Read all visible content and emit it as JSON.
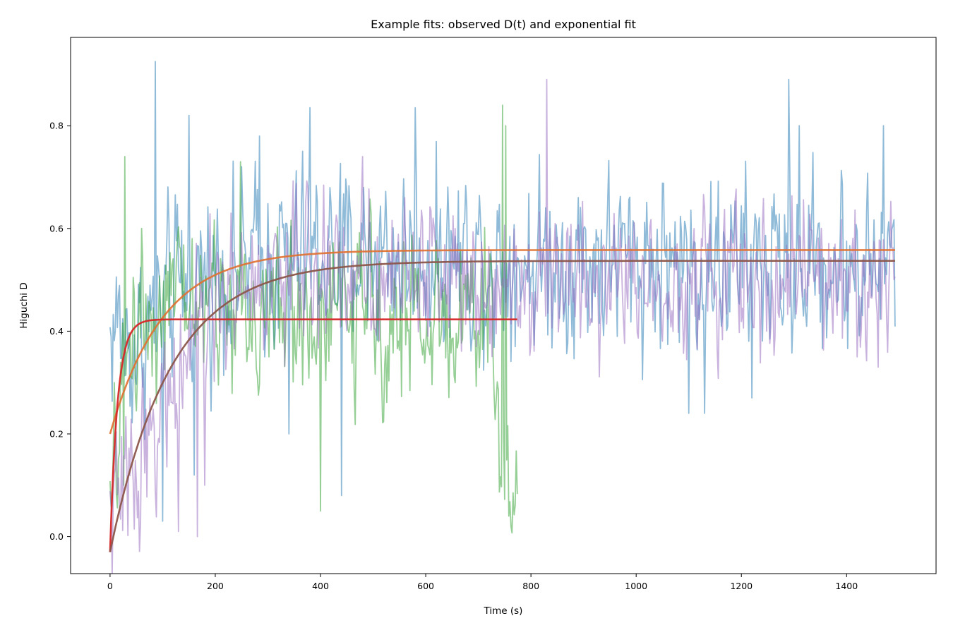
{
  "chart_data": {
    "type": "line",
    "title": "Example fits: observed D(t) and exponential fit",
    "xlabel": "Time (s)",
    "ylabel": "Higuchi D",
    "xlim": [
      -75,
      1570
    ],
    "ylim": [
      -0.072,
      0.972
    ],
    "xticks": [
      0,
      200,
      400,
      600,
      800,
      1000,
      1200,
      1400
    ],
    "yticks": [
      0.0,
      0.2,
      0.4,
      0.6,
      0.8
    ],
    "ytick_labels": [
      "0.0",
      "0.2",
      "0.4",
      "0.6",
      "0.8"
    ],
    "grid": false,
    "legend": "none",
    "observed_series": [
      {
        "color": "#1f77b4",
        "opacity": 0.5,
        "x_end": 1493,
        "step": 2,
        "anchors": [
          [
            0,
            0.38
          ],
          [
            10,
            0.42
          ],
          [
            40,
            0.36
          ],
          [
            80,
            0.42
          ],
          [
            150,
            0.5
          ],
          [
            250,
            0.53
          ],
          [
            400,
            0.55
          ],
          [
            600,
            0.55
          ],
          [
            800,
            0.54
          ],
          [
            1000,
            0.54
          ],
          [
            1200,
            0.53
          ],
          [
            1493,
            0.53
          ]
        ],
        "noise": 0.12,
        "spikes": [
          [
            85,
            0.925
          ],
          [
            150,
            0.82
          ],
          [
            284,
            0.78
          ],
          [
            380,
            0.835
          ],
          [
            580,
            0.835
          ],
          [
            1290,
            0.89
          ],
          [
            1310,
            0.8
          ],
          [
            1470,
            0.8
          ],
          [
            1100,
            0.24
          ],
          [
            1130,
            0.24
          ],
          [
            1220,
            0.27
          ],
          [
            440,
            0.08
          ],
          [
            100,
            0.03
          ],
          [
            160,
            0.12
          ],
          [
            340,
            0.2
          ]
        ]
      },
      {
        "color": "#2ca02c",
        "opacity": 0.5,
        "x_end": 775,
        "step": 2,
        "anchors": [
          [
            0,
            0.0
          ],
          [
            20,
            0.28
          ],
          [
            40,
            0.4
          ],
          [
            70,
            0.44
          ],
          [
            150,
            0.46
          ],
          [
            300,
            0.44
          ],
          [
            500,
            0.43
          ],
          [
            700,
            0.42
          ],
          [
            735,
            0.4
          ],
          [
            740,
            0.12
          ],
          [
            775,
            0.12
          ]
        ],
        "noise": 0.11,
        "spikes": [
          [
            28,
            0.74
          ],
          [
            60,
            0.6
          ],
          [
            248,
            0.73
          ],
          [
            745,
            0.84
          ],
          [
            752,
            0.8
          ],
          [
            757,
            0.04
          ],
          [
            770,
            0.06
          ],
          [
            25,
            0.1
          ],
          [
            400,
            0.05
          ]
        ]
      },
      {
        "color": "#9467bd",
        "opacity": 0.5,
        "x_end": 1493,
        "step": 2,
        "anchors": [
          [
            0,
            0.05
          ],
          [
            30,
            0.09
          ],
          [
            60,
            0.17
          ],
          [
            100,
            0.25
          ],
          [
            150,
            0.36
          ],
          [
            200,
            0.45
          ],
          [
            300,
            0.5
          ],
          [
            400,
            0.52
          ],
          [
            600,
            0.52
          ],
          [
            800,
            0.51
          ],
          [
            1000,
            0.5
          ],
          [
            1200,
            0.5
          ],
          [
            1493,
            0.5
          ]
        ],
        "noise": 0.1,
        "spikes": [
          [
            830,
            0.89
          ],
          [
            230,
            0.63
          ],
          [
            480,
            0.74
          ],
          [
            165,
            0.0
          ],
          [
            180,
            0.1
          ],
          [
            1460,
            0.33
          ],
          [
            1420,
            0.35
          ],
          [
            130,
            0.01
          ]
        ]
      }
    ],
    "fit_series": [
      {
        "color": "#e07030",
        "opacity": 0.9,
        "model": "exponential",
        "A": 0.558,
        "y0": 0.2,
        "tau": 100,
        "x_end": 1493
      },
      {
        "color": "#d62728",
        "opacity": 0.95,
        "model": "exponential",
        "A": 0.423,
        "y0": -0.03,
        "tau": 14,
        "x_end": 775
      },
      {
        "color": "#8c564b",
        "opacity": 0.95,
        "model": "exponential",
        "A": 0.537,
        "y0": -0.03,
        "tau": 115,
        "x_end": 1493
      }
    ]
  }
}
